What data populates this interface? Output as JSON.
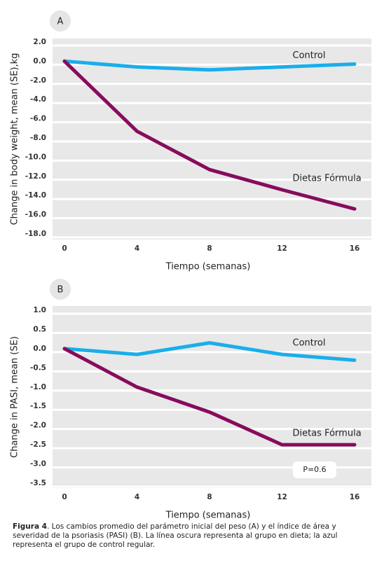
{
  "chart_data": [
    {
      "type": "line",
      "panel": "A",
      "ylabel": "Change in body weight, mean (SE),kg",
      "xlabel": "Tiempo (semanas)",
      "x": [
        0,
        4,
        8,
        12,
        16
      ],
      "xlim": [
        0,
        16
      ],
      "xticks": [
        0,
        4,
        8,
        12,
        16
      ],
      "ylim": [
        -18,
        2
      ],
      "yticks": [
        {
          "value": 2,
          "label": "2.0"
        },
        {
          "value": 0,
          "label": "0.0"
        },
        {
          "value": -2,
          "label": "-2.0"
        },
        {
          "value": -4,
          "label": "-4.0"
        },
        {
          "value": -6,
          "label": "-6.0"
        },
        {
          "value": -8,
          "label": "-8.0"
        },
        {
          "value": -10,
          "label": "-10.0"
        },
        {
          "value": -12,
          "label": "-12.0"
        },
        {
          "value": -14,
          "label": "-14.0"
        },
        {
          "value": -16,
          "label": "-16.0"
        },
        {
          "value": -18,
          "label": "-18.0"
        }
      ],
      "grid": true,
      "series": [
        {
          "name": "Control",
          "color": "#1aaeea",
          "values": [
            0,
            -0.6,
            -0.9,
            -0.6,
            -0.3
          ]
        },
        {
          "name": "Dietas Fórmula",
          "color": "#870c5c",
          "values": [
            0,
            -7.3,
            -11.3,
            -13.4,
            -15.4
          ]
        }
      ]
    },
    {
      "type": "line",
      "panel": "B",
      "ylabel": "Change in PASI, mean (SE)",
      "xlabel": "Tiempo (semanas)",
      "x": [
        0,
        4,
        8,
        12,
        16
      ],
      "xlim": [
        0,
        16
      ],
      "xticks": [
        0,
        4,
        8,
        12,
        16
      ],
      "ylim": [
        -3.5,
        1
      ],
      "yticks": [
        {
          "value": 1,
          "label": "1.0"
        },
        0.5,
        {
          "value": 0,
          "label": "0.0"
        },
        -0.5,
        {
          "value": -1,
          "label": "-1.0"
        },
        -1.5,
        {
          "value": -2,
          "label": "-2.0"
        },
        -2.5,
        {
          "value": -3,
          "label": "-3.0"
        },
        -3.5
      ],
      "grid": true,
      "annotation": "P=0.6",
      "series": [
        {
          "name": "Control",
          "color": "#1aaeea",
          "values": [
            0,
            -0.15,
            0.15,
            -0.15,
            -0.3
          ]
        },
        {
          "name": "Dietas Fórmula",
          "color": "#870c5c",
          "values": [
            0,
            -1.0,
            -1.65,
            -2.5,
            -2.5
          ]
        }
      ]
    }
  ],
  "caption": {
    "label": "Figura 4",
    "text": ". Los cambios promedio del parámetro inicial del peso (A) y el índice de área y severidad de la psoriasis (PASI) (B). La línea oscura representa al grupo en dieta; la azul representa el grupo de control regular."
  }
}
